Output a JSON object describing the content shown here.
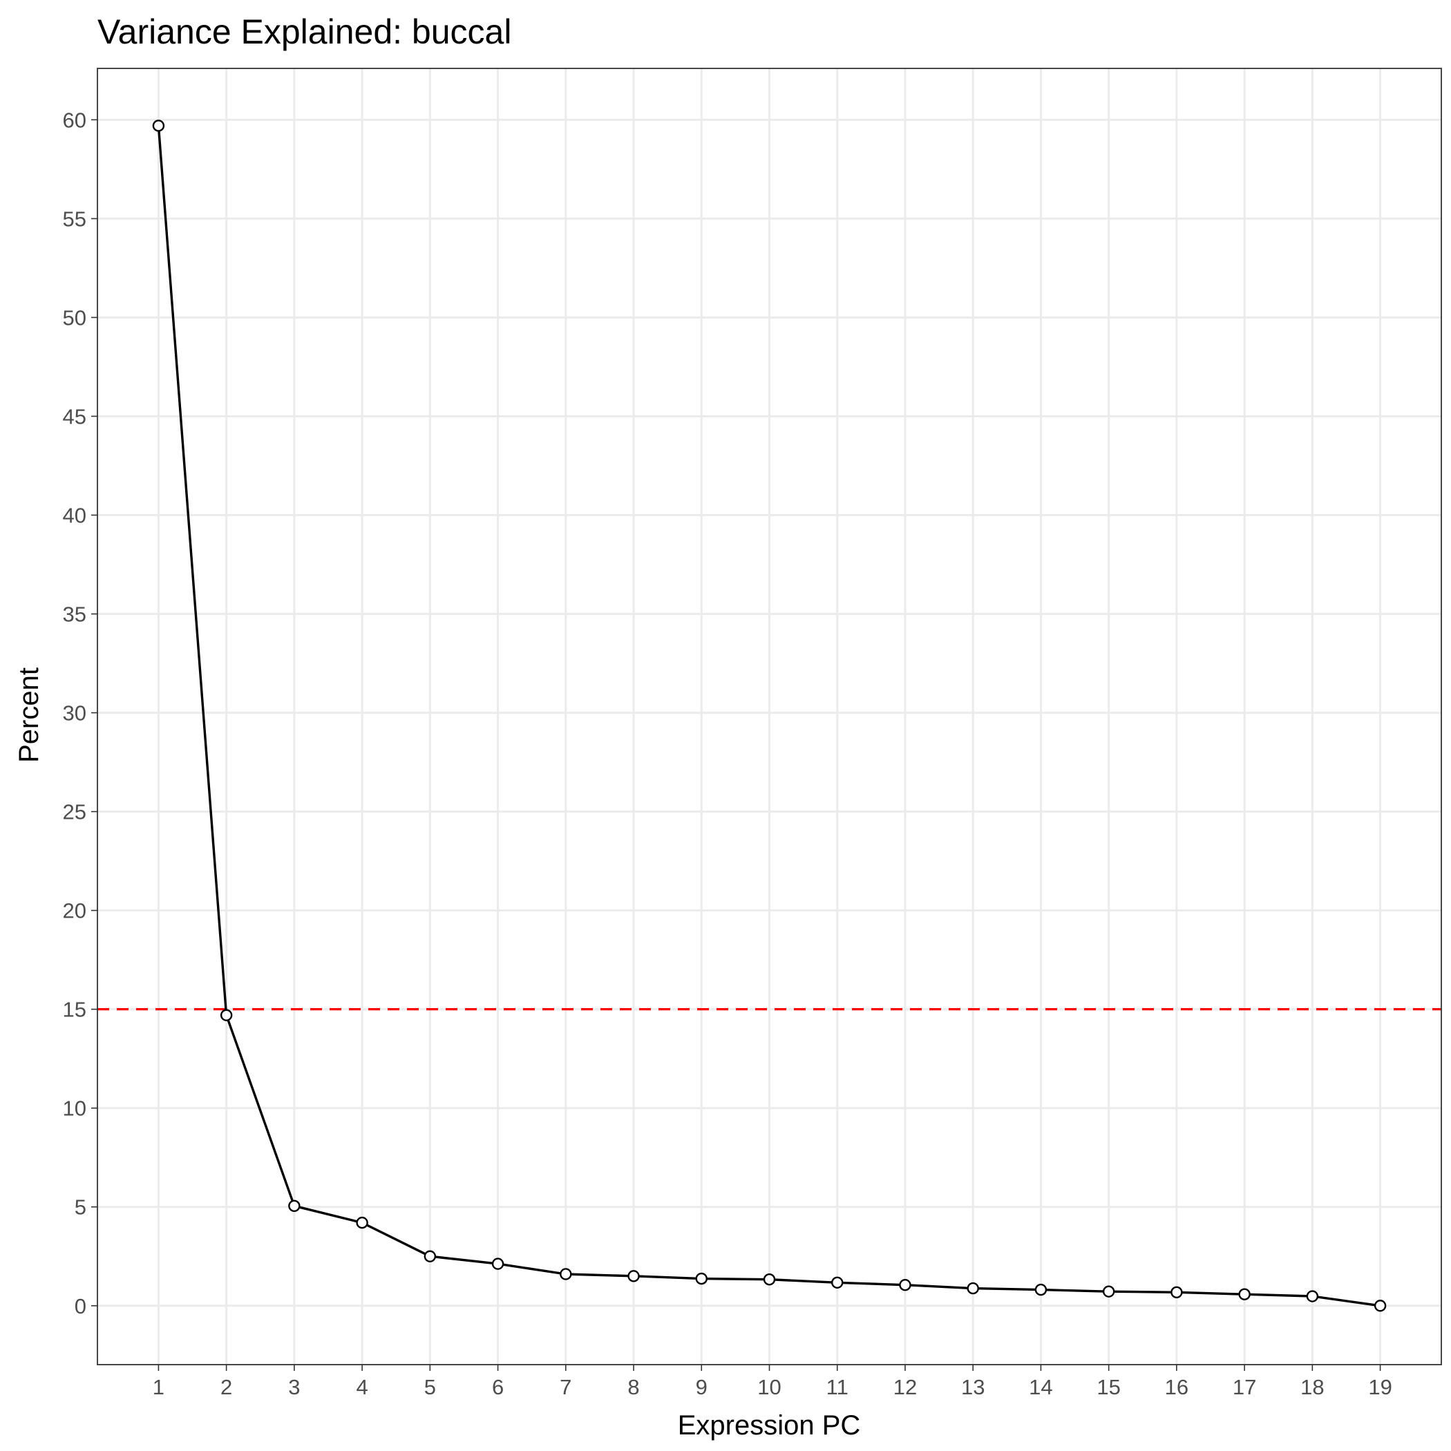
{
  "chart_data": {
    "type": "line",
    "title": "Variance Explained: buccal",
    "xlabel": "Expression PC",
    "ylabel": "Percent",
    "x": [
      1,
      2,
      3,
      4,
      5,
      6,
      7,
      8,
      9,
      10,
      11,
      12,
      13,
      14,
      15,
      16,
      17,
      18,
      19
    ],
    "x_tick_labels": [
      "1",
      "2",
      "3",
      "4",
      "5",
      "6",
      "7",
      "8",
      "9",
      "10",
      "11",
      "12",
      "13",
      "14",
      "15",
      "16",
      "17",
      "18",
      "19"
    ],
    "y_ticks": [
      0,
      5,
      10,
      15,
      20,
      25,
      30,
      35,
      40,
      45,
      50,
      55,
      60
    ],
    "y_tick_labels": [
      "0",
      "5",
      "10",
      "15",
      "20",
      "25",
      "30",
      "35",
      "40",
      "45",
      "50",
      "55",
      "60"
    ],
    "xlim": [
      0.1,
      19.9
    ],
    "ylim": [
      -2.98,
      62.6
    ],
    "series": [
      {
        "values": [
          59.7,
          14.7,
          5.05,
          4.2,
          2.5,
          2.12,
          1.6,
          1.5,
          1.37,
          1.33,
          1.17,
          1.05,
          0.88,
          0.81,
          0.72,
          0.68,
          0.58,
          0.48,
          0.0
        ]
      }
    ],
    "reference_line": {
      "y": 15,
      "style": "dashed",
      "color": "#ff0000"
    },
    "line_color": "#000000",
    "marker_fill": "#ffffff",
    "grid": true,
    "legend": "none"
  }
}
